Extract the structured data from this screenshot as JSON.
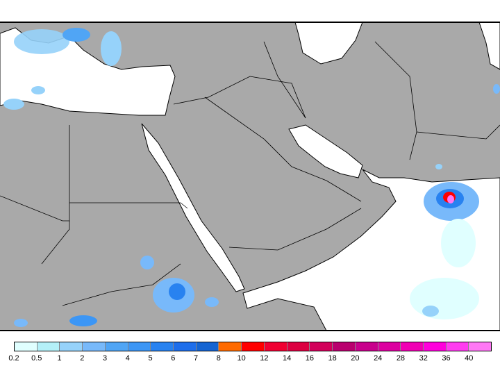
{
  "map": {
    "land_color": "#a9a9a9",
    "water_color": "#ffffff",
    "border_color": "#000000"
  },
  "legend": {
    "labels": [
      "0.2",
      "0.5",
      "1",
      "2",
      "3",
      "4",
      "5",
      "6",
      "7",
      "8",
      "10",
      "12",
      "14",
      "16",
      "18",
      "20",
      "24",
      "28",
      "32",
      "36",
      "40"
    ],
    "colors": [
      "#e0ffff",
      "#b4f0f8",
      "#96d2fa",
      "#78b9fa",
      "#50a5f5",
      "#3c96f5",
      "#2882f0",
      "#1e6eeb",
      "#1464d2",
      "#ff6a00",
      "#ff0000",
      "#f00032",
      "#dc0041",
      "#d2005a",
      "#b9006e",
      "#c8008c",
      "#dc00a0",
      "#f000b4",
      "#ff00dc",
      "#ff3cf0",
      "#ff78f5"
    ]
  }
}
